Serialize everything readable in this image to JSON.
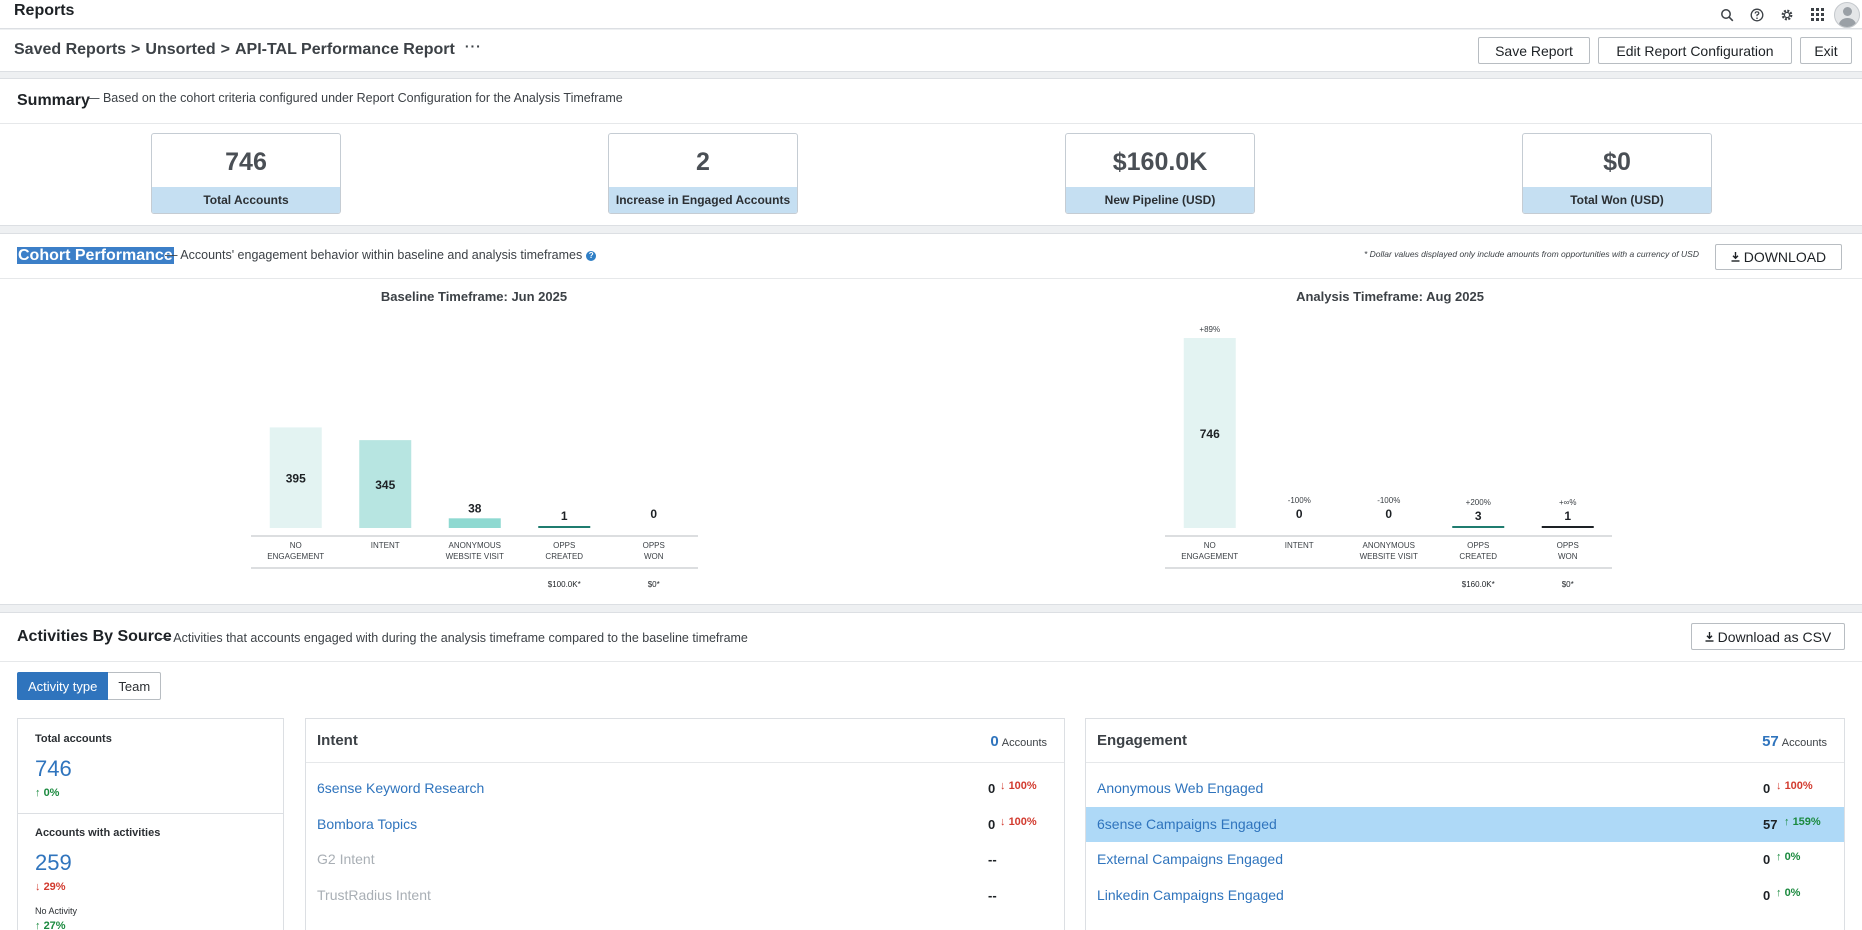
{
  "app": {
    "title": "Reports"
  },
  "header": {
    "breadcrumb": [
      "Saved Reports",
      "Unsorted",
      "API-TAL Performance Report"
    ],
    "separator": ">",
    "more": "···",
    "buttons": {
      "save": "Save Report",
      "edit": "Edit Report Configuration",
      "exit": "Exit"
    }
  },
  "topbar_icons": [
    "search-icon",
    "help-icon",
    "gear-icon",
    "apps-grid-icon",
    "avatar"
  ],
  "summary": {
    "title": "Summary",
    "description": "— Based on the cohort criteria configured under Report Configuration for the Analysis Timeframe",
    "cards": [
      {
        "value": "746",
        "label": "Total Accounts"
      },
      {
        "value": "2",
        "label": "Increase in Engaged Accounts"
      },
      {
        "value": "$160.0K",
        "label": "New Pipeline (USD)"
      },
      {
        "value": "$0",
        "label": "Total Won (USD)"
      }
    ]
  },
  "cohort": {
    "title": "Cohort Performance",
    "description": "— Accounts' engagement behavior within baseline and analysis timeframes",
    "info": "?",
    "footnote": "* Dollar values displayed only include amounts from opportunities with a currency of USD",
    "download_label": "DOWNLOAD",
    "colors": {
      "bar_light": "#e3f3f2",
      "bar_mid": "#b7e5e1",
      "bar_strong": "#8ed9d1",
      "line_teal": "#1f7c6f",
      "line_dark": "#1d2125"
    }
  },
  "chart_data": [
    {
      "type": "bar",
      "title": "Baseline Timeframe: Jun 2025",
      "categories": [
        "NO ENGAGEMENT",
        "INTENT",
        "ANONYMOUS WEBSITE VISIT",
        "OPPS CREATED",
        "OPPS WON"
      ],
      "values": [
        395,
        345,
        38,
        1,
        0
      ],
      "changes": [
        "",
        "",
        "",
        "",
        ""
      ],
      "sublabels": [
        "",
        "",
        "",
        "$100.0K*",
        "$0*"
      ]
    },
    {
      "type": "bar",
      "title": "Analysis Timeframe: Aug 2025",
      "categories": [
        "NO ENGAGEMENT",
        "INTENT",
        "ANONYMOUS WEBSITE VISIT",
        "OPPS CREATED",
        "OPPS WON"
      ],
      "values": [
        746,
        0,
        0,
        3,
        1
      ],
      "changes": [
        "+89%",
        "-100%",
        "-100%",
        "+200%",
        "+∞%"
      ],
      "sublabels": [
        "",
        "",
        "",
        "$160.0K*",
        "$0*"
      ]
    }
  ],
  "activities": {
    "title": "Activities By Source",
    "description": "— Activities that accounts engaged with during the analysis timeframe compared to the baseline timeframe",
    "csv_label": "Download as CSV",
    "tabs": [
      "Activity type",
      "Team"
    ],
    "left": {
      "total_label": "Total accounts",
      "total_value": "746",
      "total_change": "0%",
      "with_label": "Accounts with activities",
      "with_value": "259",
      "with_change": "29%",
      "no_activity_label": "No Activity",
      "no_activity_change": "27%"
    },
    "intent": {
      "title": "Intent",
      "count": "0",
      "count_label": "Accounts",
      "rows": [
        {
          "name": "6sense Keyword Research",
          "value": "0",
          "change": "100%",
          "dir": "down",
          "muted": false
        },
        {
          "name": "Bombora Topics",
          "value": "0",
          "change": "100%",
          "dir": "down",
          "muted": false
        },
        {
          "name": "G2 Intent",
          "value": "--",
          "change": "",
          "dir": "",
          "muted": true
        },
        {
          "name": "TrustRadius Intent",
          "value": "--",
          "change": "",
          "dir": "",
          "muted": true
        }
      ]
    },
    "engagement": {
      "title": "Engagement",
      "count": "57",
      "count_label": "Accounts",
      "rows": [
        {
          "name": "Anonymous Web Engaged",
          "value": "0",
          "change": "100%",
          "dir": "down"
        },
        {
          "name": "6sense Campaigns Engaged",
          "value": "57",
          "change": "159%",
          "dir": "up"
        },
        {
          "name": "External Campaigns Engaged",
          "value": "0",
          "change": "0%",
          "dir": "up"
        },
        {
          "name": "Linkedin Campaigns Engaged",
          "value": "0",
          "change": "0%",
          "dir": "up"
        }
      ]
    }
  }
}
